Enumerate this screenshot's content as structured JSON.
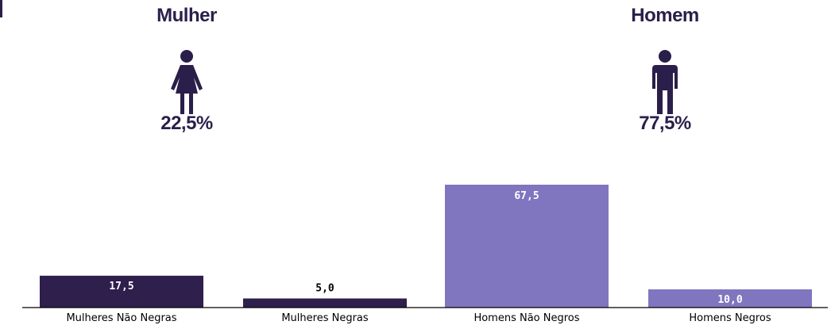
{
  "summary": {
    "women": {
      "title": "Mulher",
      "percent": "22,5%",
      "icon": "woman-icon"
    },
    "men": {
      "title": "Homem",
      "percent": "77,5%",
      "icon": "man-icon"
    }
  },
  "chart_data": {
    "type": "bar",
    "categories": [
      "Mulheres Não Negras",
      "Mulheres Negras",
      "Homens Não Negros",
      "Homens Negros"
    ],
    "values": [
      17.5,
      5.0,
      67.5,
      10.0
    ],
    "value_labels": [
      "17,5",
      "5,0",
      "67,5",
      "10,0"
    ],
    "colors": [
      "#2e1f4d",
      "#2e1f4d",
      "#8075bf",
      "#8075bf"
    ],
    "ylim": [
      0,
      85
    ],
    "grid": false,
    "legend": "none"
  }
}
